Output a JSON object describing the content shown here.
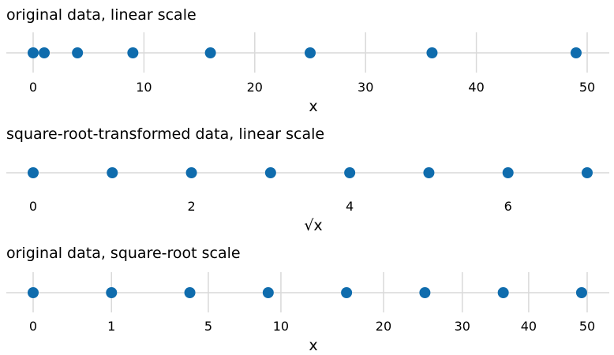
{
  "chart_data": [
    {
      "type": "scatter",
      "title": "original data, linear scale",
      "xlabel": "x",
      "scale": "linear",
      "xlim": [
        0,
        50
      ],
      "ticks": [
        0,
        10,
        20,
        30,
        40,
        50
      ],
      "tick_labels": [
        "0",
        "10",
        "20",
        "30",
        "40",
        "50"
      ],
      "values": [
        0,
        1,
        4,
        9,
        16,
        25,
        36,
        49
      ],
      "point_color": "#0f6cad",
      "grid": true
    },
    {
      "type": "scatter",
      "title": "square-root-transformed data, linear scale",
      "xlabel": "√x",
      "scale": "linear",
      "xlim": [
        0,
        7
      ],
      "ticks": [
        0,
        2,
        4,
        6
      ],
      "tick_labels": [
        "0",
        "2",
        "4",
        "6"
      ],
      "values": [
        0,
        1,
        2,
        3,
        4,
        5,
        6,
        7
      ],
      "point_color": "#0f6cad",
      "grid": false
    },
    {
      "type": "scatter",
      "title": "original data, square-root scale",
      "xlabel": "x",
      "scale": "sqrt",
      "xlim": [
        0,
        50
      ],
      "ticks": [
        0,
        1,
        5,
        10,
        20,
        30,
        40,
        50
      ],
      "tick_labels": [
        "0",
        "1",
        "5",
        "10",
        "20",
        "30",
        "40",
        "50"
      ],
      "values": [
        0,
        1,
        4,
        9,
        16,
        25,
        36,
        49
      ],
      "point_color": "#0f6cad",
      "grid": true
    }
  ]
}
